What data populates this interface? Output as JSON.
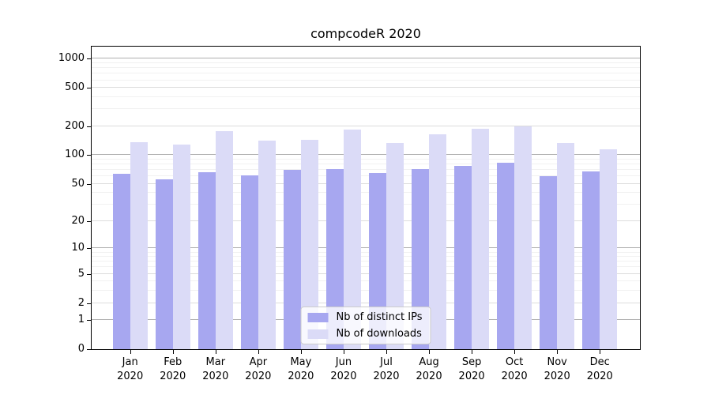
{
  "chart_data": {
    "type": "bar",
    "title": "compcodeR 2020",
    "categories": [
      "Jan 2020",
      "Feb 2020",
      "Mar 2020",
      "Apr 2020",
      "May 2020",
      "Jun 2020",
      "Jul 2020",
      "Aug 2020",
      "Sep 2020",
      "Oct 2020",
      "Nov 2020",
      "Dec 2020"
    ],
    "series": [
      {
        "name": "Nb of distinct IPs",
        "color": "#a7a7f0",
        "values": [
          64,
          56,
          67,
          61,
          70,
          72,
          65,
          71,
          77,
          84,
          60,
          68
        ]
      },
      {
        "name": "Nb of downloads",
        "color": "#dbdbf7",
        "values": [
          136,
          130,
          178,
          141,
          145,
          184,
          134,
          164,
          188,
          198,
          135,
          115
        ]
      }
    ],
    "xlabel": "",
    "ylabel": "",
    "yscale": "log1p",
    "ylim": [
      0,
      1300
    ],
    "yticks": [
      0,
      1,
      2,
      5,
      10,
      20,
      50,
      100,
      200,
      500,
      1000
    ],
    "yticks_emphasized": [
      1,
      10,
      100,
      1000
    ],
    "yticks_minor": [
      3,
      4,
      6,
      7,
      8,
      9,
      30,
      40,
      60,
      70,
      80,
      90,
      300,
      400,
      600,
      700,
      800,
      900
    ],
    "grid": true,
    "legend_position": "lower center"
  }
}
